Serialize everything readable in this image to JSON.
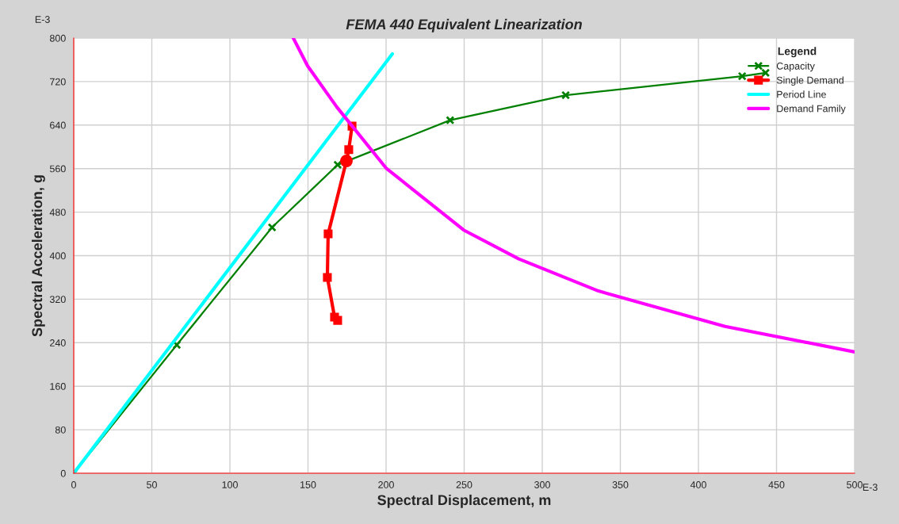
{
  "chart_data": {
    "type": "line",
    "title": "FEMA 440 Equivalent Linearization",
    "xlabel": "Spectral Displacement, m",
    "ylabel": "Spectral Acceleration, g",
    "legend_title": "Legend",
    "legend": "top right",
    "grid": true,
    "xlim": [
      0,
      500
    ],
    "xticks": [
      0,
      50,
      100,
      150,
      200,
      250,
      300,
      350,
      400,
      450,
      500
    ],
    "ylim": [
      0,
      800
    ],
    "yticks": [
      0,
      80,
      160,
      240,
      320,
      400,
      480,
      560,
      640,
      720,
      800
    ],
    "annotations": [
      "E-3",
      "E-3"
    ],
    "series": [
      {
        "name": "Capacity",
        "color": "#008000",
        "marker": "cross",
        "x": [
          0,
          66,
          127,
          169,
          241,
          315,
          428,
          443
        ],
        "values": [
          0,
          236,
          452,
          567,
          649,
          695,
          730,
          736
        ]
      },
      {
        "name": "Single Demand",
        "color": "#ff0000",
        "marker": "square",
        "x": [
          169,
          167,
          162.4,
          162.9,
          174.6,
          176.1,
          178.2
        ],
        "values": [
          281,
          287,
          360,
          440,
          574,
          595,
          638
        ]
      },
      {
        "name": "Period Line",
        "color": "#00ffff",
        "marker": "none",
        "x": [
          0,
          204
        ],
        "values": [
          0,
          771
        ]
      },
      {
        "name": "Demand Family",
        "color": "#ff00ff",
        "marker": "none",
        "x": [
          140.6,
          149.7,
          168.5,
          200,
          249.7,
          285,
          336,
          417,
          500
        ],
        "values": [
          800,
          749,
          673,
          561,
          447,
          394,
          335,
          270,
          223
        ]
      },
      {
        "type": "scatter",
        "color": "#ff0000",
        "marker": "circle",
        "x": [
          174.6
        ],
        "values": [
          574
        ]
      }
    ]
  }
}
